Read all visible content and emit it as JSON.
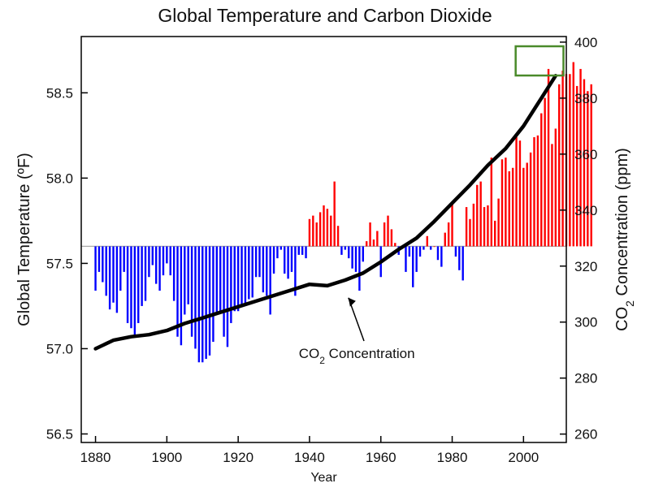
{
  "chart_data": {
    "type": "bar",
    "title": "Global Temperature and Carbon Dioxide",
    "xlabel": "Year",
    "ylabel_left": "Global Temperature (ºF)",
    "ylabel_right_parts": [
      "CO",
      "2",
      " Concentration (ppm)"
    ],
    "xlim": [
      1876,
      2012
    ],
    "ylim_left": [
      56.45,
      58.83
    ],
    "ylim_right": [
      257,
      402
    ],
    "baseline": 57.6,
    "x_ticks": [
      1880,
      1900,
      1920,
      1940,
      1960,
      1980,
      2000
    ],
    "left_ticks": [
      "56.5",
      "57.0",
      "57.5",
      "58.0",
      "58.5"
    ],
    "right_ticks": [
      260,
      280,
      300,
      320,
      340,
      360,
      380,
      400
    ],
    "grid": false,
    "colors": {
      "above_baseline": "#ff0000",
      "below_baseline": "#0000ff",
      "co2_line": "#000000",
      "highlight_box": "#4a8a2a",
      "baseline": "#aaaaaa"
    },
    "temperature": {
      "start_year": 1880,
      "values": [
        57.34,
        57.45,
        57.39,
        57.31,
        57.23,
        57.27,
        57.21,
        57.34,
        57.45,
        57.15,
        57.12,
        57.08,
        57.15,
        57.25,
        57.28,
        57.42,
        57.49,
        57.38,
        57.34,
        57.43,
        57.5,
        57.43,
        57.28,
        57.07,
        57.02,
        57.2,
        57.26,
        57.07,
        57.0,
        56.92,
        56.92,
        56.94,
        56.96,
        57.04,
        57.2,
        57.21,
        57.07,
        57.01,
        57.15,
        57.22,
        57.22,
        57.25,
        57.26,
        57.29,
        57.3,
        57.42,
        57.42,
        57.33,
        57.31,
        57.2,
        57.44,
        57.53,
        57.58,
        57.44,
        57.41,
        57.45,
        57.31,
        57.55,
        57.55,
        57.53,
        57.76,
        57.78,
        57.74,
        57.8,
        57.84,
        57.82,
        57.78,
        57.98,
        57.72,
        57.55,
        57.58,
        57.53,
        57.47,
        57.45,
        57.34,
        57.51,
        57.63,
        57.74,
        57.64,
        57.69,
        57.42,
        57.74,
        57.78,
        57.7,
        57.62,
        57.55,
        57.6,
        57.45,
        57.54,
        57.36,
        57.45,
        57.54,
        57.58,
        57.66,
        57.58,
        57.6,
        57.52,
        57.48,
        57.68,
        57.74,
        57.86,
        57.54,
        57.46,
        57.4,
        57.83,
        57.76,
        57.85,
        57.96,
        57.98,
        57.83,
        57.84,
        58.12,
        57.75,
        57.88,
        58.11,
        58.12,
        58.04,
        58.06,
        58.24,
        58.22,
        58.06,
        58.09,
        58.15,
        58.24,
        58.25,
        58.38,
        58.47,
        58.64,
        58.2,
        58.29,
        58.55,
        58.63,
        58.61,
        58.61,
        58.68,
        58.54,
        58.64,
        58.58,
        58.51,
        58.55
      ]
    },
    "co2": {
      "years": [
        1880,
        1885,
        1890,
        1895,
        1900,
        1905,
        1910,
        1915,
        1920,
        1925,
        1930,
        1935,
        1940,
        1945,
        1950,
        1955,
        1960,
        1965,
        1970,
        1975,
        1980,
        1985,
        1990,
        1995,
        2000,
        2005,
        2009
      ],
      "ppm": [
        290.5,
        293.5,
        294.8,
        295.5,
        297,
        299.5,
        301.5,
        303.5,
        305.5,
        307.5,
        309.5,
        311.5,
        313.5,
        313,
        315,
        317.5,
        321.5,
        326,
        330,
        336,
        342.5,
        349,
        356,
        362,
        370,
        380,
        388
      ]
    },
    "annotation": {
      "parts": [
        "CO",
        "2",
        " Concentration"
      ],
      "x": 1950,
      "y": 57.26
    }
  }
}
